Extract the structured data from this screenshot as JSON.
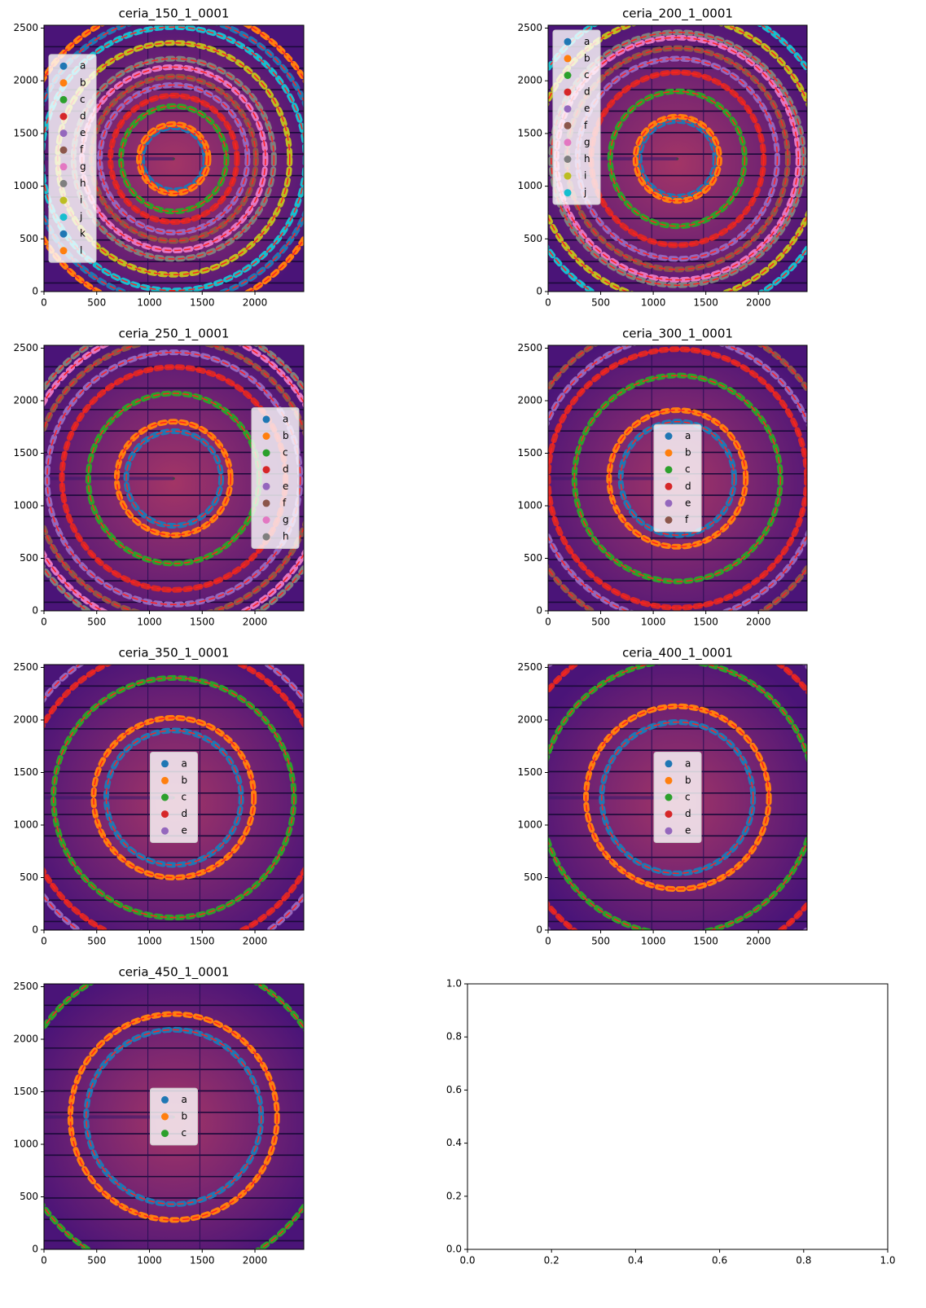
{
  "chart_data": [
    {
      "type": "image-rings",
      "title": "ceria_150_1_0001",
      "center": [
        1230,
        1260
      ],
      "xlim": [
        0,
        2463
      ],
      "ylim": [
        0,
        2527
      ],
      "xticks": [
        0,
        500,
        1000,
        1500,
        2000
      ],
      "yticks": [
        0,
        500,
        1000,
        1500,
        2000,
        2500
      ],
      "legend": "center left",
      "series": [
        {
          "name": "a",
          "color": "#1f77b4",
          "radius": 300
        },
        {
          "name": "b",
          "color": "#ff7f0e",
          "radius": 330
        },
        {
          "name": "c",
          "color": "#2ca02c",
          "radius": 500
        },
        {
          "name": "d",
          "color": "#d62728",
          "radius": 600
        },
        {
          "name": "e",
          "color": "#9467bd",
          "radius": 700
        },
        {
          "name": "f",
          "color": "#8c564b",
          "radius": 780
        },
        {
          "name": "g",
          "color": "#e377c2",
          "radius": 870
        },
        {
          "name": "h",
          "color": "#7f7f7f",
          "radius": 950
        },
        {
          "name": "i",
          "color": "#bcbd22",
          "radius": 1100
        },
        {
          "name": "j",
          "color": "#17becf",
          "radius": 1250
        },
        {
          "name": "k",
          "color": "#1f77b4",
          "radius": 1350
        },
        {
          "name": "l",
          "color": "#ff7f0e",
          "radius": 1450
        }
      ]
    },
    {
      "type": "image-rings",
      "title": "ceria_200_1_0001",
      "center": [
        1230,
        1260
      ],
      "xlim": [
        0,
        2463
      ],
      "ylim": [
        0,
        2527
      ],
      "xticks": [
        0,
        500,
        1000,
        1500,
        2000
      ],
      "yticks": [
        0,
        500,
        1000,
        1500,
        2000,
        2500
      ],
      "legend": "upper left",
      "series": [
        {
          "name": "a",
          "color": "#1f77b4",
          "radius": 360
        },
        {
          "name": "b",
          "color": "#ff7f0e",
          "radius": 400
        },
        {
          "name": "c",
          "color": "#2ca02c",
          "radius": 640
        },
        {
          "name": "d",
          "color": "#d62728",
          "radius": 820
        },
        {
          "name": "e",
          "color": "#9467bd",
          "radius": 950
        },
        {
          "name": "f",
          "color": "#8c564b",
          "radius": 1050
        },
        {
          "name": "g",
          "color": "#e377c2",
          "radius": 1150
        },
        {
          "name": "h",
          "color": "#7f7f7f",
          "radius": 1200
        },
        {
          "name": "i",
          "color": "#bcbd22",
          "radius": 1350
        },
        {
          "name": "j",
          "color": "#17becf",
          "radius": 1500
        }
      ]
    },
    {
      "type": "image-rings",
      "title": "ceria_250_1_0001",
      "center": [
        1230,
        1260
      ],
      "xlim": [
        0,
        2463
      ],
      "ylim": [
        0,
        2527
      ],
      "xticks": [
        0,
        500,
        1000,
        1500,
        2000
      ],
      "yticks": [
        0,
        500,
        1000,
        1500,
        2000,
        2500
      ],
      "legend": "center right",
      "series": [
        {
          "name": "a",
          "color": "#1f77b4",
          "radius": 450
        },
        {
          "name": "b",
          "color": "#ff7f0e",
          "radius": 540
        },
        {
          "name": "c",
          "color": "#2ca02c",
          "radius": 810
        },
        {
          "name": "d",
          "color": "#d62728",
          "radius": 1060
        },
        {
          "name": "e",
          "color": "#9467bd",
          "radius": 1200
        },
        {
          "name": "f",
          "color": "#8c564b",
          "radius": 1320
        },
        {
          "name": "g",
          "color": "#e377c2",
          "radius": 1430
        },
        {
          "name": "h",
          "color": "#7f7f7f",
          "radius": 1500
        }
      ]
    },
    {
      "type": "image-rings",
      "title": "ceria_300_1_0001",
      "center": [
        1230,
        1260
      ],
      "xlim": [
        0,
        2463
      ],
      "ylim": [
        0,
        2527
      ],
      "xticks": [
        0,
        500,
        1000,
        1500,
        2000
      ],
      "yticks": [
        0,
        500,
        1000,
        1500,
        2000,
        2500
      ],
      "legend": "center",
      "series": [
        {
          "name": "a",
          "color": "#1f77b4",
          "radius": 540
        },
        {
          "name": "b",
          "color": "#ff7f0e",
          "radius": 650
        },
        {
          "name": "c",
          "color": "#2ca02c",
          "radius": 980
        },
        {
          "name": "d",
          "color": "#d62728",
          "radius": 1230
        },
        {
          "name": "e",
          "color": "#9467bd",
          "radius": 1350
        },
        {
          "name": "f",
          "color": "#8c564b",
          "radius": 1500
        }
      ]
    },
    {
      "type": "image-rings",
      "title": "ceria_350_1_0001",
      "center": [
        1230,
        1260
      ],
      "xlim": [
        0,
        2463
      ],
      "ylim": [
        0,
        2527
      ],
      "xticks": [
        0,
        500,
        1000,
        1500,
        2000
      ],
      "yticks": [
        0,
        500,
        1000,
        1500,
        2000,
        2500
      ],
      "legend": "center",
      "series": [
        {
          "name": "a",
          "color": "#1f77b4",
          "radius": 640
        },
        {
          "name": "b",
          "color": "#ff7f0e",
          "radius": 760
        },
        {
          "name": "c",
          "color": "#2ca02c",
          "radius": 1140
        },
        {
          "name": "d",
          "color": "#d62728",
          "radius": 1420
        },
        {
          "name": "e",
          "color": "#9467bd",
          "radius": 1550
        }
      ]
    },
    {
      "type": "image-rings",
      "title": "ceria_400_1_0001",
      "center": [
        1230,
        1260
      ],
      "xlim": [
        0,
        2463
      ],
      "ylim": [
        0,
        2527
      ],
      "xticks": [
        0,
        500,
        1000,
        1500,
        2000
      ],
      "yticks": [
        0,
        500,
        1000,
        1500,
        2000,
        2500
      ],
      "legend": "center",
      "series": [
        {
          "name": "a",
          "color": "#1f77b4",
          "radius": 720
        },
        {
          "name": "b",
          "color": "#ff7f0e",
          "radius": 870
        },
        {
          "name": "c",
          "color": "#2ca02c",
          "radius": 1300
        },
        {
          "name": "d",
          "color": "#d62728",
          "radius": 1600
        },
        {
          "name": "e",
          "color": "#9467bd",
          "radius": 1760
        }
      ]
    },
    {
      "type": "image-rings",
      "title": "ceria_450_1_0001",
      "center": [
        1230,
        1260
      ],
      "xlim": [
        0,
        2463
      ],
      "ylim": [
        0,
        2527
      ],
      "xticks": [
        0,
        500,
        1000,
        1500,
        2000
      ],
      "yticks": [
        0,
        500,
        1000,
        1500,
        2000,
        2500
      ],
      "legend": "center",
      "series": [
        {
          "name": "a",
          "color": "#1f77b4",
          "radius": 830
        },
        {
          "name": "b",
          "color": "#ff7f0e",
          "radius": 980
        },
        {
          "name": "c",
          "color": "#2ca02c",
          "radius": 1500
        }
      ]
    },
    {
      "type": "empty",
      "xlim": [
        0,
        1
      ],
      "ylim": [
        0,
        1
      ],
      "xticks": [
        {
          "value": 0,
          "label": "0.0"
        },
        {
          "value": 0.2,
          "label": "0.2"
        },
        {
          "value": 0.4,
          "label": "0.4"
        },
        {
          "value": 0.6,
          "label": "0.6"
        },
        {
          "value": 0.8,
          "label": "0.8"
        },
        {
          "value": 1,
          "label": "1.0"
        }
      ],
      "yticks": [
        {
          "value": 0,
          "label": "0.0"
        },
        {
          "value": 0.2,
          "label": "0.2"
        },
        {
          "value": 0.4,
          "label": "0.4"
        },
        {
          "value": 0.6,
          "label": "0.6"
        },
        {
          "value": 0.8,
          "label": "0.8"
        },
        {
          "value": 1,
          "label": "1.0"
        }
      ]
    }
  ]
}
